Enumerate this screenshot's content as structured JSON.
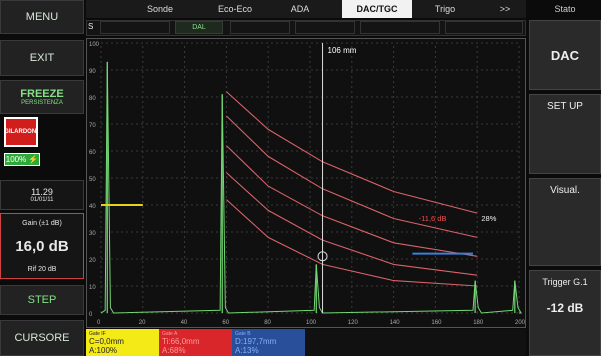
{
  "left": {
    "menu": "MENU",
    "exit": "EXIT",
    "freeze": "FREEZE",
    "freeze_sub": "PERSISTENZA",
    "brand": "GILARDONI",
    "battery": "100%",
    "time": "11.29",
    "date": "01/01/11",
    "gain_label": "Gain (±1 dB)",
    "gain_value": "16,0 dB",
    "gain_ref": "Rif 20 dB",
    "step": "STEP",
    "cursor": "CURSORE"
  },
  "tabs": [
    "Sonde",
    "Eco-Eco",
    "ADA",
    "DAC/TGC",
    "Trigo",
    ">>"
  ],
  "subtabs": [
    "S",
    "",
    "",
    "DAL",
    "",
    "",
    "",
    ""
  ],
  "right": {
    "header": "Stato",
    "state": "DAC",
    "setup": "SET UP",
    "visual": "Visual.",
    "trigger_label": "Trigger G.1",
    "trigger_value": "-12 dB"
  },
  "chart_data": {
    "type": "line",
    "x_ticks": [
      "0",
      "20",
      "40",
      "60",
      "80",
      "100",
      "120",
      "140",
      "160",
      "180",
      "200"
    ],
    "y_ticks": [
      "0",
      "10",
      "20",
      "30",
      "40",
      "50",
      "60",
      "70",
      "80",
      "90",
      "100"
    ],
    "cursor_label": "106 mm",
    "gate_label": "-11,6 dB",
    "gate_percent": "28%",
    "xlim": [
      0,
      200
    ],
    "ylim": [
      0,
      100
    ],
    "cursor_x": 106,
    "dac_curves": [
      {
        "points": [
          [
            60,
            82
          ],
          [
            80,
            68
          ],
          [
            106,
            56
          ],
          [
            140,
            45
          ],
          [
            180,
            37
          ]
        ]
      },
      {
        "points": [
          [
            60,
            73
          ],
          [
            80,
            58
          ],
          [
            106,
            46
          ],
          [
            140,
            35
          ],
          [
            180,
            28
          ]
        ]
      },
      {
        "points": [
          [
            60,
            62
          ],
          [
            80,
            47
          ],
          [
            106,
            36
          ],
          [
            140,
            26
          ],
          [
            180,
            21
          ]
        ]
      },
      {
        "points": [
          [
            60,
            52
          ],
          [
            80,
            38
          ],
          [
            106,
            27
          ],
          [
            140,
            18
          ],
          [
            180,
            14
          ]
        ]
      },
      {
        "points": [
          [
            60,
            42
          ],
          [
            80,
            28
          ],
          [
            106,
            18
          ],
          [
            140,
            12
          ],
          [
            180,
            10
          ]
        ]
      }
    ],
    "gates": [
      {
        "color": "#e6d21a",
        "y": 40,
        "x1": 0,
        "x2": 20
      },
      {
        "color": "#3d7fd8",
        "y": 22,
        "x1": 149,
        "x2": 178
      }
    ],
    "peaks": [
      {
        "x": 3,
        "h": 93
      },
      {
        "x": 58,
        "h": 81
      },
      {
        "x": 103,
        "h": 18
      },
      {
        "x": 179,
        "h": 12
      },
      {
        "x": 198,
        "h": 12
      }
    ]
  },
  "bottom": {
    "panels": [
      {
        "title": "Gate IF",
        "l1": "C=0,0mm",
        "l2": "A:100%",
        "color": "#f3ea18",
        "text": "#222"
      },
      {
        "title": "Gate A",
        "l1": "Ti:66,0mm",
        "l2": "A:68%",
        "color": "#d9262a",
        "text": "#ff9a9a"
      },
      {
        "title": "Gate B",
        "l1": "D:197,7mm",
        "l2": "A:13%",
        "color": "#2a4f9a",
        "text": "#7fb0ff"
      }
    ]
  }
}
